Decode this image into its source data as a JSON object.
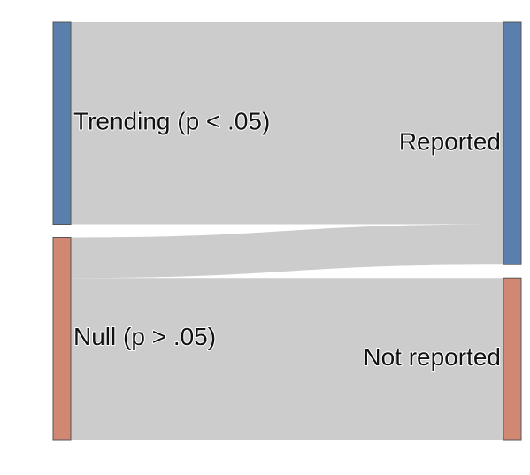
{
  "chart_data": {
    "type": "sankey",
    "title": "",
    "nodes": [
      {
        "id": "trending",
        "label": "Trending (p < .05)",
        "column": 0,
        "color": "#5b7fad"
      },
      {
        "id": "null",
        "label": "Null (p > .05)",
        "column": 0,
        "color": "#d18872"
      },
      {
        "id": "reported",
        "label": "Reported",
        "column": 1,
        "color": "#5b7fad"
      },
      {
        "id": "not_reported",
        "label": "Not reported",
        "column": 1,
        "color": "#d18872"
      }
    ],
    "links": [
      {
        "source": "trending",
        "target": "reported",
        "value": 50
      },
      {
        "source": "null",
        "target": "reported",
        "value": 10
      },
      {
        "source": "null",
        "target": "not_reported",
        "value": 40
      }
    ],
    "link_color": "#cccccc"
  }
}
